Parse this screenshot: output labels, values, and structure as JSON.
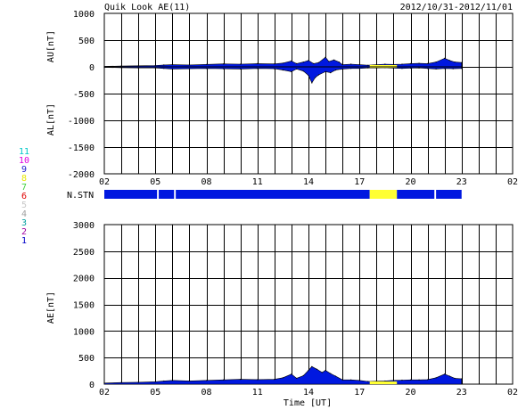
{
  "header": {
    "title": "Quik Look AE(11)",
    "date_range": "2012/10/31-2012/11/01"
  },
  "legend_numbers": [
    {
      "label": "11",
      "color": "#00c8c8"
    },
    {
      "label": "10",
      "color": "#e000e0"
    },
    {
      "label": "9",
      "color": "#2020d0"
    },
    {
      "label": "8",
      "color": "#e8e800"
    },
    {
      "label": "7",
      "color": "#40d040"
    },
    {
      "label": "6",
      "color": "#e00000"
    },
    {
      "label": "5",
      "color": "#c8c8c8"
    },
    {
      "label": "4",
      "color": "#a0a0a0"
    },
    {
      "label": "3",
      "color": "#00a0a0"
    },
    {
      "label": "2",
      "color": "#a000a0"
    },
    {
      "label": "1",
      "color": "#0000c8"
    }
  ],
  "colors": {
    "fill": "#0018e0",
    "fill_stroke": "#000000",
    "highlight": "#ffff33",
    "grid": "#000000"
  },
  "x_ticks": [
    "02",
    "05",
    "08",
    "11",
    "14",
    "17",
    "20",
    "23",
    "02"
  ],
  "xlabel": "Time [UT]",
  "nstn_label": "N.STN",
  "chart_data": [
    {
      "type": "area",
      "name": "AU/AL",
      "ylabel_top": "AU[nT]",
      "ylabel_bottom": "AL[nT]",
      "x_range_hours": [
        2,
        26
      ],
      "ylim": [
        -2000,
        1000
      ],
      "y_ticks": [
        "1000",
        "500",
        "0",
        "-500",
        "-1000",
        "-1500",
        "-2000"
      ],
      "au_series": [
        [
          2,
          10
        ],
        [
          3,
          15
        ],
        [
          4,
          20
        ],
        [
          5,
          25
        ],
        [
          5.5,
          35
        ],
        [
          6,
          40
        ],
        [
          7,
          35
        ],
        [
          8,
          45
        ],
        [
          9,
          55
        ],
        [
          10,
          50
        ],
        [
          11,
          60
        ],
        [
          12,
          55
        ],
        [
          12.5,
          70
        ],
        [
          13,
          110
        ],
        [
          13.3,
          60
        ],
        [
          13.7,
          90
        ],
        [
          14,
          120
        ],
        [
          14.3,
          60
        ],
        [
          14.6,
          80
        ],
        [
          15,
          180
        ],
        [
          15.2,
          100
        ],
        [
          15.5,
          130
        ],
        [
          15.8,
          90
        ],
        [
          16,
          40
        ],
        [
          16.5,
          50
        ],
        [
          17,
          40
        ],
        [
          17.5,
          30
        ],
        [
          18,
          40
        ],
        [
          18.5,
          50
        ],
        [
          19,
          45
        ],
        [
          19.5,
          50
        ],
        [
          20,
          60
        ],
        [
          20.5,
          65
        ],
        [
          21,
          60
        ],
        [
          21.5,
          90
        ],
        [
          22,
          160
        ],
        [
          22.3,
          120
        ],
        [
          22.6,
          90
        ],
        [
          23,
          80
        ]
      ],
      "al_series": [
        [
          2,
          -10
        ],
        [
          3,
          -15
        ],
        [
          4,
          -20
        ],
        [
          5,
          -20
        ],
        [
          5.5,
          -30
        ],
        [
          6,
          -40
        ],
        [
          7,
          -35
        ],
        [
          8,
          -30
        ],
        [
          9,
          -35
        ],
        [
          10,
          -40
        ],
        [
          11,
          -30
        ],
        [
          12,
          -35
        ],
        [
          12.5,
          -60
        ],
        [
          13,
          -90
        ],
        [
          13.3,
          -40
        ],
        [
          13.7,
          -80
        ],
        [
          14,
          -160
        ],
        [
          14.2,
          -300
        ],
        [
          14.4,
          -200
        ],
        [
          14.6,
          -150
        ],
        [
          15,
          -90
        ],
        [
          15.3,
          -110
        ],
        [
          15.6,
          -60
        ],
        [
          16,
          -40
        ],
        [
          16.5,
          -30
        ],
        [
          17,
          -30
        ],
        [
          17.5,
          -20
        ],
        [
          18,
          -20
        ],
        [
          18.5,
          -15
        ],
        [
          19,
          -25
        ],
        [
          19.5,
          -30
        ],
        [
          20,
          -25
        ],
        [
          20.5,
          -20
        ],
        [
          21,
          -30
        ],
        [
          21.5,
          -40
        ],
        [
          22,
          -30
        ],
        [
          22.5,
          -35
        ],
        [
          23,
          -30
        ]
      ],
      "highlight_segments": [
        [
          17.6,
          19.2
        ]
      ]
    },
    {
      "type": "area",
      "name": "AE",
      "ylabel": "AE[nT]",
      "x_range_hours": [
        2,
        26
      ],
      "ylim": [
        0,
        3000
      ],
      "y_ticks": [
        "3000",
        "2500",
        "2000",
        "1500",
        "1000",
        "500",
        "0"
      ],
      "series": [
        [
          2,
          20
        ],
        [
          3,
          30
        ],
        [
          4,
          35
        ],
        [
          5,
          45
        ],
        [
          5.5,
          60
        ],
        [
          6,
          70
        ],
        [
          7,
          60
        ],
        [
          8,
          70
        ],
        [
          9,
          80
        ],
        [
          10,
          90
        ],
        [
          11,
          85
        ],
        [
          12,
          90
        ],
        [
          12.5,
          120
        ],
        [
          13,
          190
        ],
        [
          13.3,
          110
        ],
        [
          13.7,
          160
        ],
        [
          14,
          260
        ],
        [
          14.2,
          330
        ],
        [
          14.5,
          280
        ],
        [
          14.8,
          220
        ],
        [
          15,
          260
        ],
        [
          15.3,
          200
        ],
        [
          15.6,
          150
        ],
        [
          16,
          80
        ],
        [
          16.5,
          80
        ],
        [
          17,
          70
        ],
        [
          17.5,
          50
        ],
        [
          18,
          55
        ],
        [
          18.5,
          60
        ],
        [
          19,
          70
        ],
        [
          19.5,
          75
        ],
        [
          20,
          80
        ],
        [
          20.5,
          80
        ],
        [
          21,
          85
        ],
        [
          21.5,
          120
        ],
        [
          22,
          190
        ],
        [
          22.3,
          150
        ],
        [
          22.6,
          110
        ],
        [
          23,
          100
        ]
      ],
      "highlight_segments": [
        [
          17.6,
          19.2
        ]
      ]
    }
  ],
  "nstn_bar": {
    "segments": [
      {
        "from": 2,
        "to": 5.1,
        "color": "blue"
      },
      {
        "from": 5.2,
        "to": 6.1,
        "color": "blue"
      },
      {
        "from": 6.2,
        "to": 17.6,
        "color": "blue"
      },
      {
        "from": 17.6,
        "to": 19.2,
        "color": "yellow"
      },
      {
        "from": 19.2,
        "to": 21.4,
        "color": "blue"
      },
      {
        "from": 21.5,
        "to": 23,
        "color": "blue"
      }
    ]
  }
}
